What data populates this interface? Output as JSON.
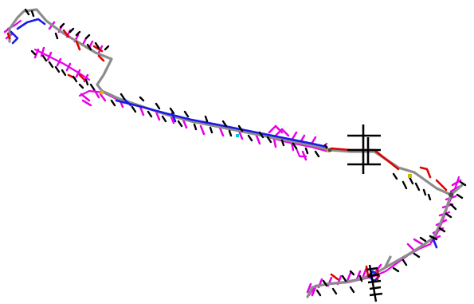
{
  "map": {
    "background": "#ffffff",
    "legend": [],
    "labels": []
  },
  "palette": {
    "road_center": "#8c8c8c",
    "red_segment": "#e00000",
    "blue_segment": "#1a1ae6",
    "magenta_segment": "#e600e6",
    "black_tick": "#000000",
    "yellow_marker": "#d9b800",
    "cyan_marker": "#00c8d8"
  },
  "icons": [
    "black-cross-marker",
    "black-tick-marker"
  ]
}
